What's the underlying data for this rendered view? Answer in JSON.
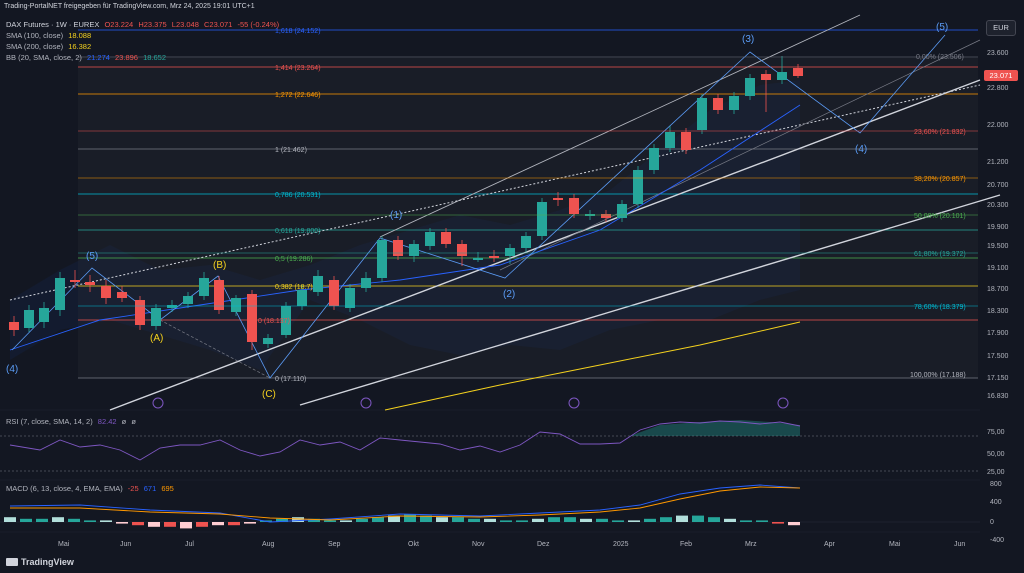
{
  "watermark": "Trading-PortalNET freigegeben für TradingView.com, Mrz 24, 2025 19:01 UTC+1",
  "currency_button": "EUR",
  "symbol_header": {
    "name": "DAX Futures · 1W · EUREX",
    "open": "O23.224",
    "high": "H23.375",
    "low": "L23.048",
    "close": "C23.071",
    "change": "-55 (-0.24%)"
  },
  "indicators": {
    "sma100": {
      "label": "SMA (100, close)",
      "value": "18.088"
    },
    "sma200": {
      "label": "SMA (200, close)",
      "value": "16.382"
    },
    "bb": {
      "label": "BB (20, SMA, close, 2)",
      "v1": "21.274",
      "v2": "23.896",
      "v3": "18.652"
    },
    "rsi": {
      "label": "RSI (7, close, SMA, 14, 2)",
      "v1": "82.42",
      "v2": "ø",
      "v3": "ø"
    },
    "macd": {
      "label": "MACD (6, 13, close, 4, EMA, EMA)",
      "v1": "-25",
      "v2": "671",
      "v3": "695"
    }
  },
  "current_price": "23.071",
  "price_axis": [
    "23.600",
    "22.800",
    "22.000",
    "21.200",
    "20.700",
    "20.300",
    "19.900",
    "19.500",
    "19.100",
    "18.700",
    "18.300",
    "17.900",
    "17.500",
    "17.150",
    "16.830"
  ],
  "rsi_axis": [
    "75,00",
    "50,00",
    "25,00"
  ],
  "macd_axis": [
    "800",
    "400",
    "0",
    "-400"
  ],
  "time_axis": [
    "Mai",
    "Jun",
    "Jul",
    "Aug",
    "Sep",
    "Okt",
    "Nov",
    "Dez",
    "2025",
    "Feb",
    "Mrz",
    "Apr",
    "Mai",
    "Jun"
  ],
  "fib_extension_labels": [
    "1,618 (24.152)",
    "1,414 (23.264)",
    "1,272 (22.646)",
    "1 (21.462)",
    "0,786 (20.531)",
    "0,618 (19.800)",
    "0,5 (19.286)",
    "0,382 (18.7)",
    "0 (18.137)",
    "0 (17.110)"
  ],
  "fib_retracement_labels": [
    "0,00% (23.506)",
    "23,60% (21.832)",
    "38,20% (20.857)",
    "50,00% (20.101)",
    "61,80% (19.372)",
    "78,60% (18.379)",
    "100,00% (17.188)"
  ],
  "wave_labels": [
    "(5)",
    "(4)",
    "(A)",
    "(B)",
    "(C)",
    "(1)",
    "(2)",
    "(3)",
    "(4)",
    "(5)"
  ],
  "branding": "TradingView",
  "colors": {
    "up": "#26a69a",
    "down": "#ef5350",
    "background": "#131722",
    "sma100": "#f5d21e",
    "sma200": "#2962ff"
  }
}
